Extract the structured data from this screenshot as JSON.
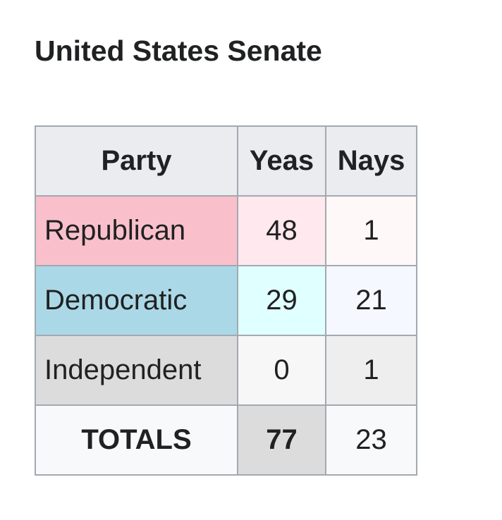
{
  "header": {
    "title": "United States Senate"
  },
  "table": {
    "columns": [
      "Party",
      "Yeas",
      "Nays"
    ],
    "rows": [
      [
        "Republican",
        48,
        1
      ],
      [
        "Democratic",
        29,
        21
      ],
      [
        "Independent",
        0,
        1
      ],
      [
        "TOTALS",
        77,
        23
      ]
    ]
  }
}
